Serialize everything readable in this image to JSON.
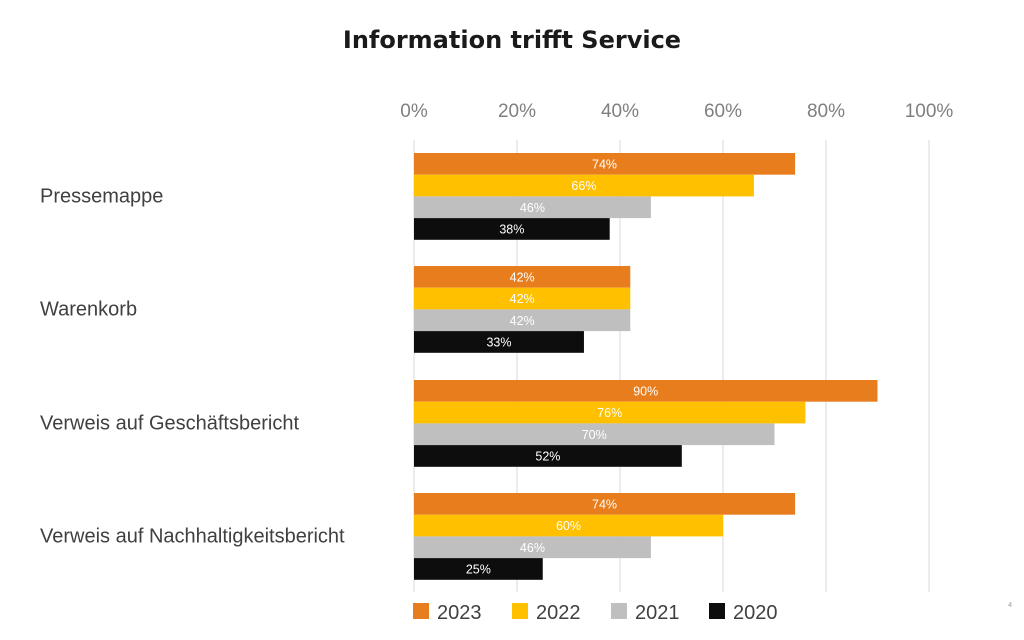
{
  "slide": {
    "title": "Information trifft Service",
    "page_number": "4"
  },
  "chart_data": {
    "type": "bar",
    "orientation": "horizontal",
    "title": "",
    "categories": [
      "Pressemappe",
      "Warenkorb",
      "Verweis auf Geschäftsbericht",
      "Verweis auf Nachhaltigkeitsbericht"
    ],
    "series": [
      {
        "name": "2023",
        "color": "#e87d1e",
        "label_color": "#ffffff",
        "values": [
          74,
          42,
          90,
          74
        ],
        "labels": [
          "74%",
          "42%",
          "90%",
          "74%"
        ]
      },
      {
        "name": "2022",
        "color": "#ffc000",
        "label_color": "#ffffff",
        "values": [
          66,
          42,
          76,
          60
        ],
        "labels": [
          "66%",
          "42%",
          "76%",
          "60%"
        ]
      },
      {
        "name": "2021",
        "color": "#bfbfbf",
        "label_color": "#ffffff",
        "values": [
          46,
          42,
          70,
          46
        ],
        "labels": [
          "46%",
          "42%",
          "70%",
          "46%"
        ]
      },
      {
        "name": "2020",
        "color": "#0d0d0d",
        "label_color": "#ffffff",
        "values": [
          38,
          33,
          52,
          25
        ],
        "labels": [
          "38%",
          "33%",
          "52%",
          "25%"
        ]
      }
    ],
    "xlim": [
      0,
      100
    ],
    "ticks": [
      0,
      20,
      40,
      60,
      80,
      100
    ],
    "tick_labels": [
      "0%",
      "20%",
      "40%",
      "60%",
      "80%",
      "100%"
    ],
    "axis_position": "top",
    "grid": true,
    "legend": "bottom"
  }
}
